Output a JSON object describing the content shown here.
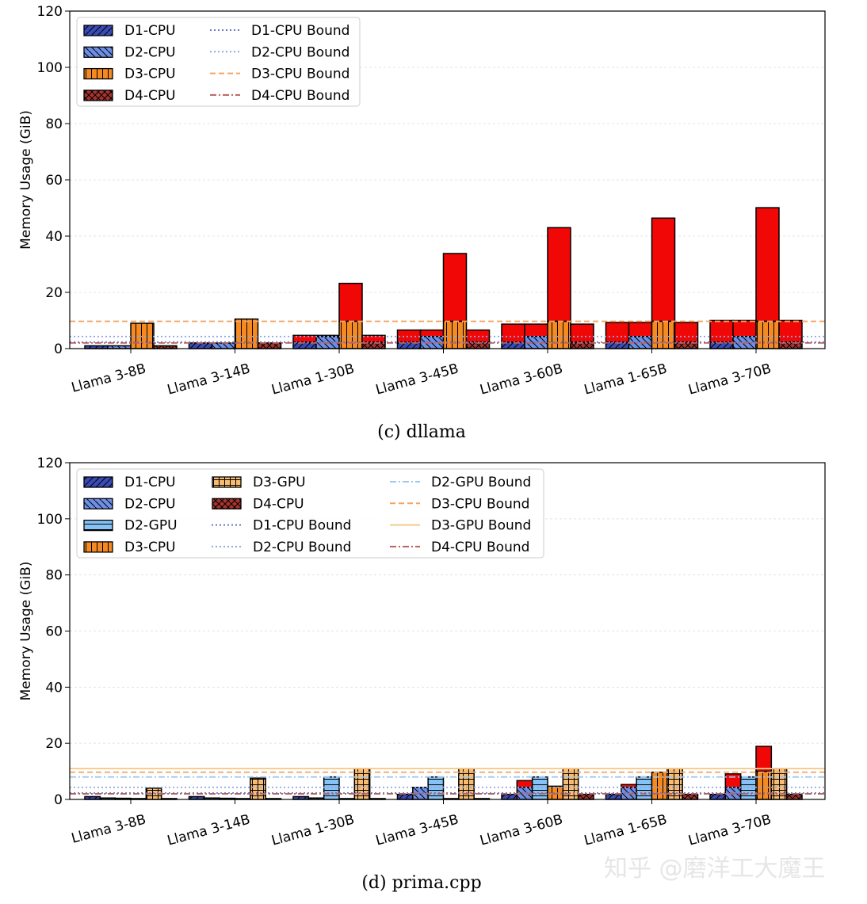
{
  "colors": {
    "D1-CPU": "#3a4bb5",
    "D2-CPU": "#6e8fe6",
    "D2-GPU": "#86c2f5",
    "D3-CPU": "#f58a23",
    "D3-GPU": "#f7bb72",
    "D4-CPU": "#a6332f",
    "overflow": "#f20707",
    "D1-CPU Bound": "#6b76c9",
    "D2-CPU Bound": "#8fa6e6",
    "D2-GPU Bound": "#9fc6ec",
    "D3-CPU Bound": "#f5a461",
    "D3-GPU Bound": "#f7c98c",
    "D4-CPU Bound": "#b8645f"
  },
  "watermark": "知乎 @磨洋工大魔王",
  "chart_data": [
    {
      "type": "bar",
      "caption": "(c) dllama",
      "ylabel": "Memory Usage (GiB)",
      "ylim": [
        0,
        120
      ],
      "yticks": [
        0,
        20,
        40,
        60,
        80,
        100,
        120
      ],
      "grid": true,
      "legend_position": "top-left",
      "categories": [
        "Llama 3-8B",
        "Llama 3-14B",
        "Llama 1-30B",
        "Llama 3-45B",
        "Llama 3-60B",
        "Llama 1-65B",
        "Llama 3-70B"
      ],
      "series": [
        {
          "name": "D1-CPU",
          "hatch": "slash",
          "values": [
            1,
            2,
            2.3,
            2.3,
            2.3,
            2.3,
            2.3
          ],
          "totals": [
            1,
            2,
            4.7,
            6.6,
            8.7,
            9.3,
            10
          ]
        },
        {
          "name": "D2-CPU",
          "hatch": "backslash",
          "values": [
            1,
            2,
            4.3,
            4.3,
            4.3,
            4.3,
            4.3
          ],
          "totals": [
            1,
            2,
            4.7,
            6.6,
            8.7,
            9.3,
            10
          ]
        },
        {
          "name": "D3-CPU",
          "hatch": "vertical",
          "values": [
            9,
            10.5,
            9.7,
            9.7,
            9.7,
            9.7,
            9.7
          ],
          "totals": [
            9,
            10.5,
            23.2,
            33.8,
            43,
            46.4,
            50.1
          ]
        },
        {
          "name": "D4-CPU",
          "hatch": "cross",
          "values": [
            1,
            2,
            2.3,
            2.3,
            2.3,
            2.3,
            2.3
          ],
          "totals": [
            1,
            2,
            4.7,
            6.6,
            8.7,
            9.3,
            10
          ]
        }
      ],
      "bounds": [
        {
          "name": "D1-CPU Bound",
          "value": 2.3,
          "style": "dotted"
        },
        {
          "name": "D2-CPU Bound",
          "value": 4.3,
          "style": "dotted"
        },
        {
          "name": "D3-CPU Bound",
          "value": 9.7,
          "style": "dashed"
        },
        {
          "name": "D4-CPU Bound",
          "value": 2.0,
          "style": "dashdot"
        }
      ],
      "legend_bars": [
        "D1-CPU",
        "D2-CPU",
        "D3-CPU",
        "D4-CPU"
      ],
      "legend_lines": [
        "D1-CPU Bound",
        "D2-CPU Bound",
        "D3-CPU Bound",
        "D4-CPU Bound"
      ]
    },
    {
      "type": "bar",
      "caption": "(d) prima.cpp",
      "ylabel": "Memory Usage (GiB)",
      "ylim": [
        0,
        120
      ],
      "yticks": [
        0,
        20,
        40,
        60,
        80,
        100,
        120
      ],
      "grid": true,
      "legend_position": "top-left",
      "categories": [
        "Llama 3-8B",
        "Llama 3-14B",
        "Llama 1-30B",
        "Llama 3-45B",
        "Llama 3-60B",
        "Llama 1-65B",
        "Llama 3-70B"
      ],
      "series": [
        {
          "name": "D1-CPU",
          "hatch": "slash",
          "values": [
            1,
            1,
            1,
            1.8,
            1.8,
            1.8,
            1.8
          ],
          "totals": [
            1,
            1,
            1,
            1.8,
            1.8,
            1.8,
            1.8
          ]
        },
        {
          "name": "D2-CPU",
          "hatch": "backslash",
          "values": [
            0.5,
            0.5,
            0.5,
            4.3,
            4.3,
            4.3,
            4.3
          ],
          "totals": [
            0.5,
            0.5,
            0.5,
            4.3,
            6.7,
            5.3,
            9.1
          ]
        },
        {
          "name": "D2-GPU",
          "hatch": "horizontal",
          "values": [
            0.4,
            0.4,
            8,
            8,
            8,
            8,
            8
          ],
          "totals": [
            0.4,
            0.4,
            8,
            8,
            8,
            8,
            8
          ]
        },
        {
          "name": "D3-CPU",
          "hatch": "vertical",
          "values": [
            0.3,
            0.3,
            0.3,
            0.3,
            4.7,
            9.7,
            10
          ],
          "totals": [
            0.3,
            0.3,
            0.3,
            0.3,
            4.7,
            9.7,
            18.9
          ]
        },
        {
          "name": "D3-GPU",
          "hatch": "grid",
          "values": [
            4,
            7.6,
            11,
            11,
            11,
            11,
            11
          ],
          "totals": [
            4,
            7.6,
            11,
            11,
            11,
            11,
            11
          ]
        },
        {
          "name": "D4-CPU",
          "hatch": "cross",
          "values": [
            0.3,
            0.3,
            0.3,
            0.3,
            1.8,
            1.8,
            1.8
          ],
          "totals": [
            0.3,
            0.3,
            0.3,
            0.3,
            1.8,
            1.8,
            1.8
          ]
        }
      ],
      "bounds": [
        {
          "name": "D1-CPU Bound",
          "value": 2.3,
          "style": "dotted"
        },
        {
          "name": "D2-CPU Bound",
          "value": 4.3,
          "style": "dotted"
        },
        {
          "name": "D2-GPU Bound",
          "value": 8.0,
          "style": "dashdot"
        },
        {
          "name": "D3-CPU Bound",
          "value": 9.7,
          "style": "dashed"
        },
        {
          "name": "D3-GPU Bound",
          "value": 11.0,
          "style": "solid"
        },
        {
          "name": "D4-CPU Bound",
          "value": 2.0,
          "style": "dashdot"
        }
      ],
      "legend_bars": [
        "D1-CPU",
        "D2-CPU",
        "D2-GPU",
        "D3-CPU",
        "D3-GPU",
        "D4-CPU"
      ],
      "legend_lines": [
        "D1-CPU Bound",
        "D2-CPU Bound",
        "D2-GPU Bound",
        "D3-CPU Bound",
        "D3-GPU Bound",
        "D4-CPU Bound"
      ]
    }
  ]
}
